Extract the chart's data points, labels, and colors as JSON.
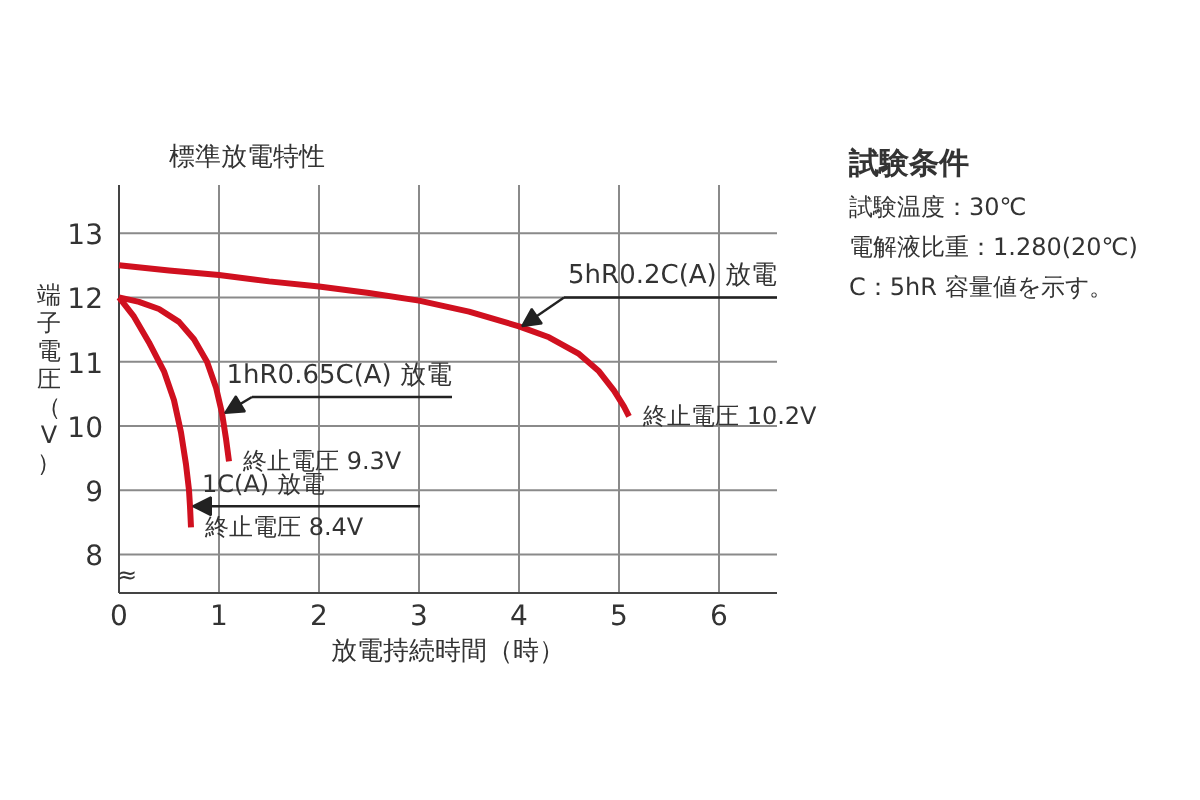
{
  "chart_data": {
    "type": "line",
    "title": "標準放電特性",
    "xlabel": "放電持続時間（時）",
    "ylabel": "端子電圧（V）",
    "xlim": [
      0,
      6.58
    ],
    "ylim": [
      7.4,
      13.75
    ],
    "xticks": [
      0,
      1,
      2,
      3,
      4,
      5,
      6
    ],
    "yticks": [
      8,
      9,
      10,
      11,
      12,
      13
    ],
    "grid": true,
    "marker": "none",
    "line_style": "solid",
    "series": [
      {
        "name": "5hR0.2C(A) 放電",
        "color": "#d0101f",
        "x": [
          0,
          0.5,
          1,
          1.5,
          2,
          2.5,
          3,
          3.5,
          4,
          4.3,
          4.6,
          4.8,
          4.95,
          5.05,
          5.1
        ],
        "values": [
          12.5,
          12.42,
          12.35,
          12.25,
          12.17,
          12.07,
          11.95,
          11.78,
          11.55,
          11.38,
          11.12,
          10.85,
          10.55,
          10.3,
          10.15
        ]
      },
      {
        "name": "1hR0.65C(A) 放電",
        "color": "#d0101f",
        "x": [
          0,
          0.2,
          0.4,
          0.6,
          0.75,
          0.88,
          0.97,
          1.03,
          1.07,
          1.1
        ],
        "values": [
          12,
          11.93,
          11.82,
          11.62,
          11.35,
          11.0,
          10.6,
          10.2,
          9.8,
          9.45
        ]
      },
      {
        "name": "1C(A) 放電",
        "color": "#d0101f",
        "x": [
          0,
          0.15,
          0.3,
          0.45,
          0.55,
          0.62,
          0.67,
          0.7,
          0.71,
          0.72
        ],
        "values": [
          12,
          11.7,
          11.3,
          10.85,
          10.4,
          9.9,
          9.4,
          9.0,
          8.75,
          8.42
        ]
      }
    ],
    "annotations": [
      {
        "text": "終止電圧 10.2V",
        "x": 5.1,
        "y": 10.15
      },
      {
        "text": "終止電圧 9.3V",
        "x": 1.1,
        "y": 9.45
      },
      {
        "text": "終止電圧 8.4V",
        "x": 0.72,
        "y": 8.42
      },
      "≈",
      "試験条件",
      "試験温度：30℃",
      "電解液比重：1.280(20℃)",
      "C：5hR 容量値を示す。"
    ]
  }
}
